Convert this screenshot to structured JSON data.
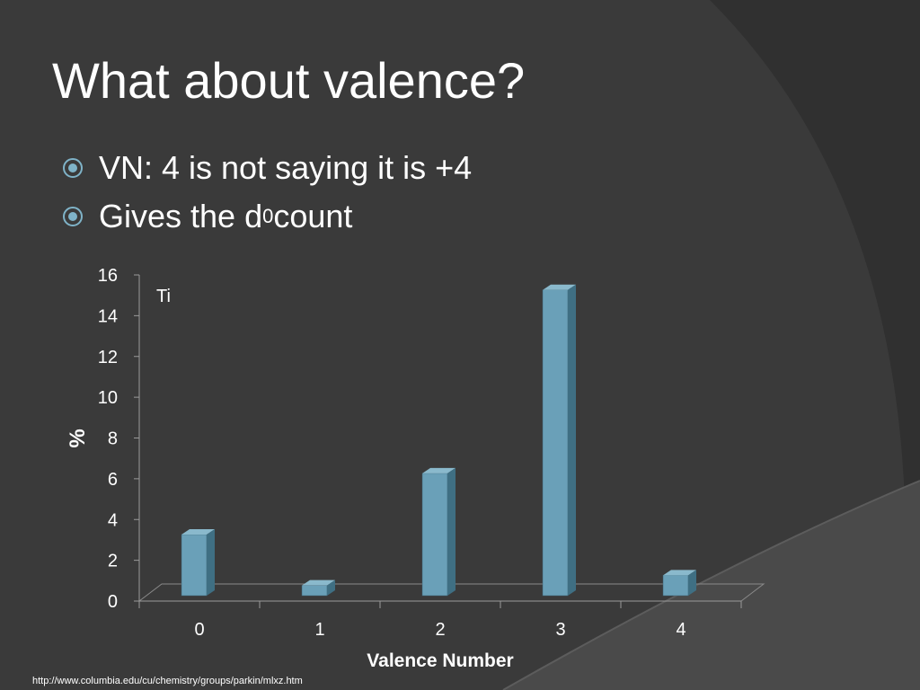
{
  "slide": {
    "title": "What about valence?",
    "bullets": [
      {
        "text": "VN: 4 is not saying it is +4",
        "superscript": ""
      },
      {
        "text": "Gives the d",
        "superscript": "0",
        "suffix": " count"
      }
    ],
    "source_url": "http://www.columbia.edu/cu/chemistry/groups/parkin/mlxz.htm"
  },
  "colors": {
    "background": "#3a3a3a",
    "accent_arc": "#2f2f2f",
    "bar_front": "#6aa0b8",
    "bar_top": "#8ab9cc",
    "bar_side": "#3f6f83",
    "text": "#ffffff",
    "bullet_icon": "#7fb3c8"
  },
  "chart_data": {
    "type": "bar",
    "annotation": "Ti",
    "xlabel": "Valence Number",
    "ylabel": "%",
    "categories": [
      "0",
      "1",
      "2",
      "3",
      "4"
    ],
    "values": [
      3.0,
      0.5,
      6.0,
      15.0,
      1.0
    ],
    "ylim": [
      0,
      16
    ],
    "yticks": [
      0,
      2,
      4,
      6,
      8,
      10,
      12,
      14,
      16
    ],
    "grid": false,
    "style": "3d-column"
  }
}
